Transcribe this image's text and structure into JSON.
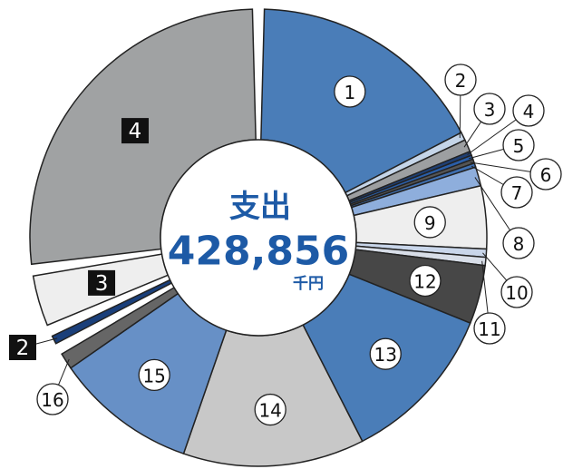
{
  "chart_data": {
    "type": "donut",
    "title": "支出",
    "total": "428,856",
    "unit": "千円",
    "groups": [
      {
        "labels": [
          "1",
          "2",
          "3",
          "4",
          "5",
          "6",
          "7",
          "8",
          "9",
          "10",
          "11",
          "12",
          "13",
          "14",
          "15",
          "16"
        ],
        "values": [
          17.6,
          0.6,
          0.9,
          0.3,
          0.3,
          0.3,
          0.3,
          1.4,
          4.6,
          0.6,
          0.6,
          4.3,
          11.8,
          13.3,
          10.4,
          1.2
        ],
        "colors": [
          "#4a7db8",
          "#c5d5e8",
          "#9d9fa1",
          "#1f3f73",
          "#2a5ea8",
          "#555555",
          "#3f6fb0",
          "#8eaedc",
          "#eeeeee",
          "#c9d6ea",
          "#d8dee8",
          "#474747",
          "#4a7db8",
          "#c8c8c8",
          "#6790c6",
          "#666666"
        ]
      },
      {
        "labels": [
          "2"
        ],
        "values": [
          0.6
        ],
        "colors": [
          "#1a3f7a"
        ]
      },
      {
        "labels": [
          "3"
        ],
        "values": [
          3.7
        ],
        "colors": [
          "#eeeeee"
        ]
      },
      {
        "labels": [
          "4"
        ],
        "values": [
          27.4
        ],
        "colors": [
          "#a0a2a3"
        ]
      }
    ]
  }
}
